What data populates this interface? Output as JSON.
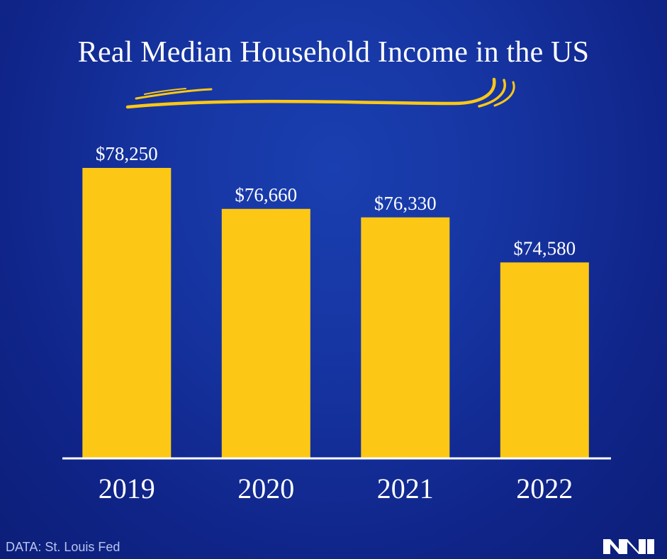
{
  "chart_data": {
    "type": "bar",
    "title": "Real Median Household Income in the US",
    "categories": [
      "2019",
      "2020",
      "2021",
      "2022"
    ],
    "values": [
      78250,
      76660,
      76330,
      74580
    ],
    "value_labels": [
      "$78,250",
      "$76,660",
      "$76,330",
      "$74,580"
    ],
    "xlabel": "",
    "ylabel": "",
    "ylim": [
      67000,
      79000
    ],
    "grid": false,
    "legend": "none",
    "colors": {
      "bar": "#fcc815",
      "axis": "#ffffff",
      "swoosh": "#fcc815"
    }
  },
  "source": "DATA: St. Louis Fed",
  "logo": {
    "icon": "mn-logo-icon",
    "color": "#ffffff"
  }
}
